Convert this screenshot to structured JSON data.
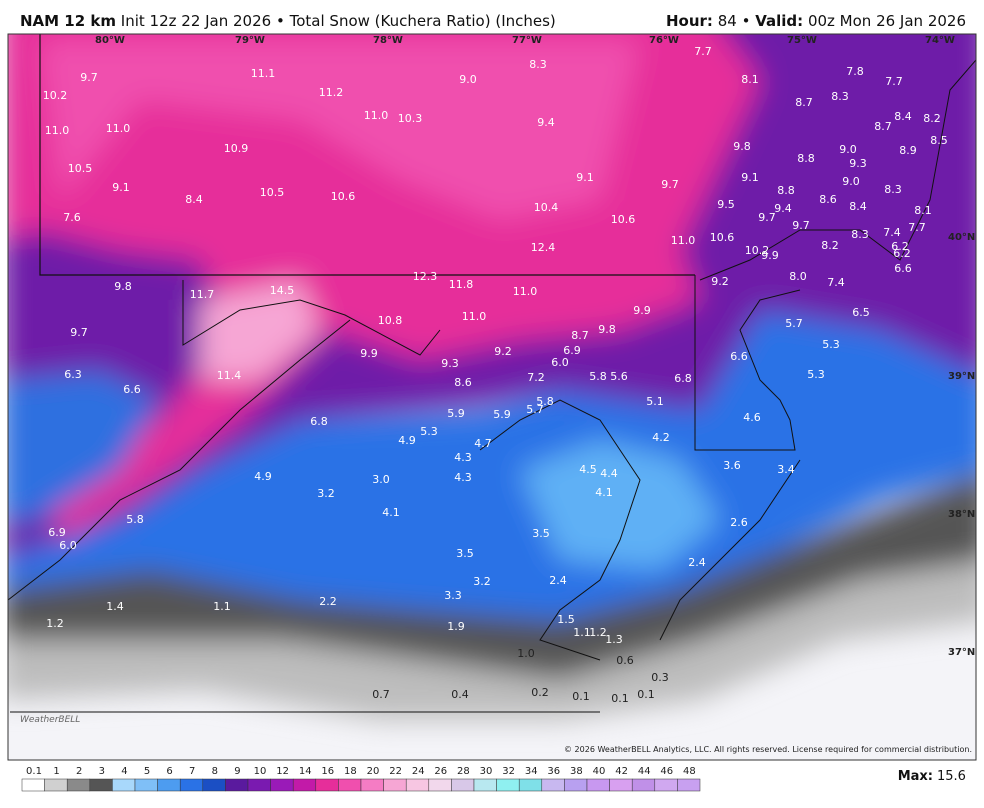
{
  "header": {
    "model": "NAM 12 km",
    "init": "Init 12z 22 Jan 2026",
    "separator": "•",
    "product": "Total Snow (Kuchera Ratio) (Inches)",
    "hour_label": "Hour:",
    "hour": "84",
    "valid_label": "Valid:",
    "valid": "00z Mon 26 Jan 2026"
  },
  "map": {
    "lon_labels": [
      "80°W",
      "79°W",
      "78°W",
      "77°W",
      "76°W",
      "75°W",
      "74°W"
    ],
    "lat_labels": [
      "40°N",
      "39°N",
      "38°N",
      "37°N"
    ],
    "snow_labels": [
      "9.7",
      "10.2",
      "11.1",
      "11.2",
      "9.0",
      "8.3",
      "7.7",
      "8.1",
      "7.8",
      "7.7",
      "11.0",
      "11.0",
      "11.0",
      "10.3",
      "9.4",
      "8.7",
      "8.3",
      "8.7",
      "8.4",
      "8.2",
      "10.9",
      "9.8",
      "8.8",
      "9.0",
      "8.9",
      "8.5",
      "10.5",
      "9.3",
      "9.1",
      "9.1",
      "9.7",
      "9.1",
      "9.0",
      "8.3",
      "8.4",
      "10.5",
      "10.6",
      "8.8",
      "8.6",
      "7.6",
      "10.4",
      "10.6",
      "9.5",
      "9.4",
      "8.4",
      "8.1",
      "9.7",
      "9.7",
      "8.3",
      "7.4",
      "7.7",
      "11.0",
      "10.6",
      "12.4",
      "10.2",
      "9.9",
      "8.2",
      "6.2",
      "6.2",
      "6.6",
      "12.3",
      "9.8",
      "11.8",
      "11.0",
      "9.2",
      "8.0",
      "7.4",
      "11.7",
      "14.5",
      "10.8",
      "11.0",
      "9.9",
      "6.5",
      "5.7",
      "9.7",
      "8.7",
      "9.8",
      "9.2",
      "6.9",
      "9.9",
      "6.6",
      "5.3",
      "9.3",
      "6.0",
      "6.3",
      "11.4",
      "7.2",
      "5.8",
      "5.6",
      "6.8",
      "5.3",
      "6.6",
      "8.6",
      "5.8",
      "5.1",
      "5.9",
      "5.9",
      "5.7",
      "6.8",
      "4.6",
      "4.7",
      "4.9",
      "5.3",
      "4.2",
      "4.3",
      "3.6",
      "4.5",
      "4.4",
      "3.4",
      "4.9",
      "3.0",
      "4.3",
      "4.1",
      "3.2",
      "4.1",
      "5.8",
      "2.6",
      "6.9",
      "3.5",
      "6.0",
      "3.5",
      "2.4",
      "3.2",
      "2.4",
      "3.3",
      "2.2",
      "1.4",
      "1.1",
      "1.5",
      "1.2",
      "1.9",
      "1.1",
      "1.2",
      "1.3",
      "1.0",
      "0.6",
      "0.3",
      "0.7",
      "0.4",
      "0.2",
      "0.1",
      "0.1",
      "0.1"
    ],
    "copyright": "© 2026 WeatherBELL Analytics, LLC. All rights reserved. License required for commercial distribution.",
    "logo": "WeatherBELL"
  },
  "legend": {
    "labels": [
      "0.1",
      "1",
      "2",
      "3",
      "4",
      "5",
      "6",
      "7",
      "8",
      "9",
      "10",
      "12",
      "14",
      "16",
      "18",
      "20",
      "22",
      "24",
      "26",
      "28",
      "30",
      "32",
      "34",
      "36",
      "38",
      "40",
      "42",
      "44",
      "46",
      "48"
    ],
    "max_label": "Max:",
    "max": "15.6"
  }
}
